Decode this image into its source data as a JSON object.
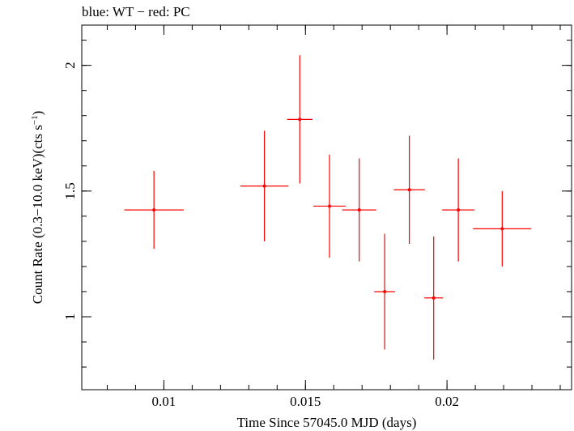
{
  "chart_data": {
    "type": "scatter",
    "title": "blue: WT − red: PC",
    "xlabel": "Time Since 57045.0 MJD (days)",
    "ylabel_main": "Count Rate (0.3−10.0 keV)(cts s",
    "ylabel_sup": "−1",
    "ylabel_end": ")",
    "xlim": [
      0.0071,
      0.0244
    ],
    "ylim": [
      0.71,
      2.16
    ],
    "x_ticks": [
      {
        "value": 0.01,
        "label": "0.01"
      },
      {
        "value": 0.015,
        "label": "0.015"
      },
      {
        "value": 0.02,
        "label": "0.02"
      }
    ],
    "x_minor_step": 0.001,
    "y_ticks": [
      {
        "value": 1.0,
        "label": "1"
      },
      {
        "value": 1.5,
        "label": "1.5"
      },
      {
        "value": 2.0,
        "label": "2"
      }
    ],
    "y_minor_step": 0.1,
    "grid": false,
    "series": [
      {
        "color": "#ff0000",
        "points": [
          {
            "x": 0.00965,
            "xerr": 0.00105,
            "y": 1.425,
            "yerr": 0.155
          },
          {
            "x": 0.01355,
            "xerr": 0.00085,
            "y": 1.52,
            "yerr": 0.22
          },
          {
            "x": 0.0148,
            "xerr": 0.00045,
            "y": 1.785,
            "yerr": 0.255
          },
          {
            "x": 0.01585,
            "xerr": 0.00057,
            "y": 1.44,
            "yerr": 0.205
          },
          {
            "x": 0.0169,
            "xerr": 0.0006,
            "y": 1.425,
            "yerr": 0.205
          },
          {
            "x": 0.0178,
            "xerr": 0.00037,
            "y": 1.1,
            "yerr": 0.23
          },
          {
            "x": 0.01867,
            "xerr": 0.00055,
            "y": 1.505,
            "yerr": 0.215
          },
          {
            "x": 0.01953,
            "xerr": 0.00033,
            "y": 1.075,
            "yerr": 0.245
          },
          {
            "x": 0.0204,
            "xerr": 0.00057,
            "y": 1.425,
            "yerr": 0.205
          },
          {
            "x": 0.02195,
            "xerr": 0.00103,
            "y": 1.35,
            "yerr": 0.15
          }
        ]
      }
    ]
  }
}
